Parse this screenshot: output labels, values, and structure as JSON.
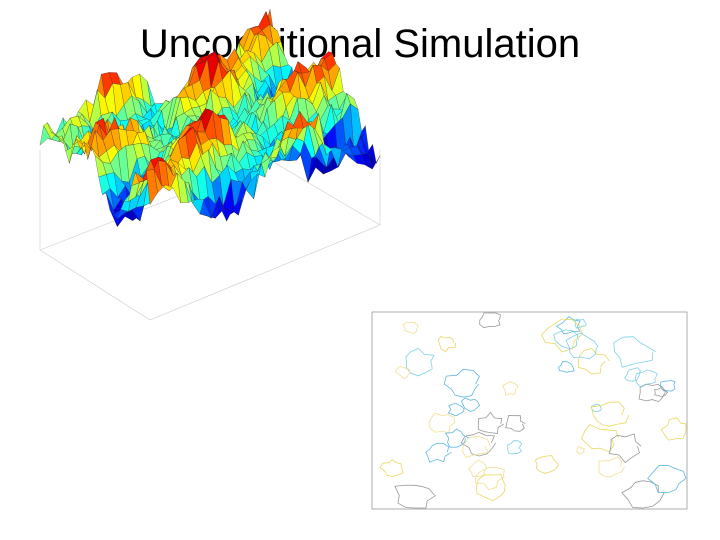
{
  "title": "Unconditional Simulation"
}
